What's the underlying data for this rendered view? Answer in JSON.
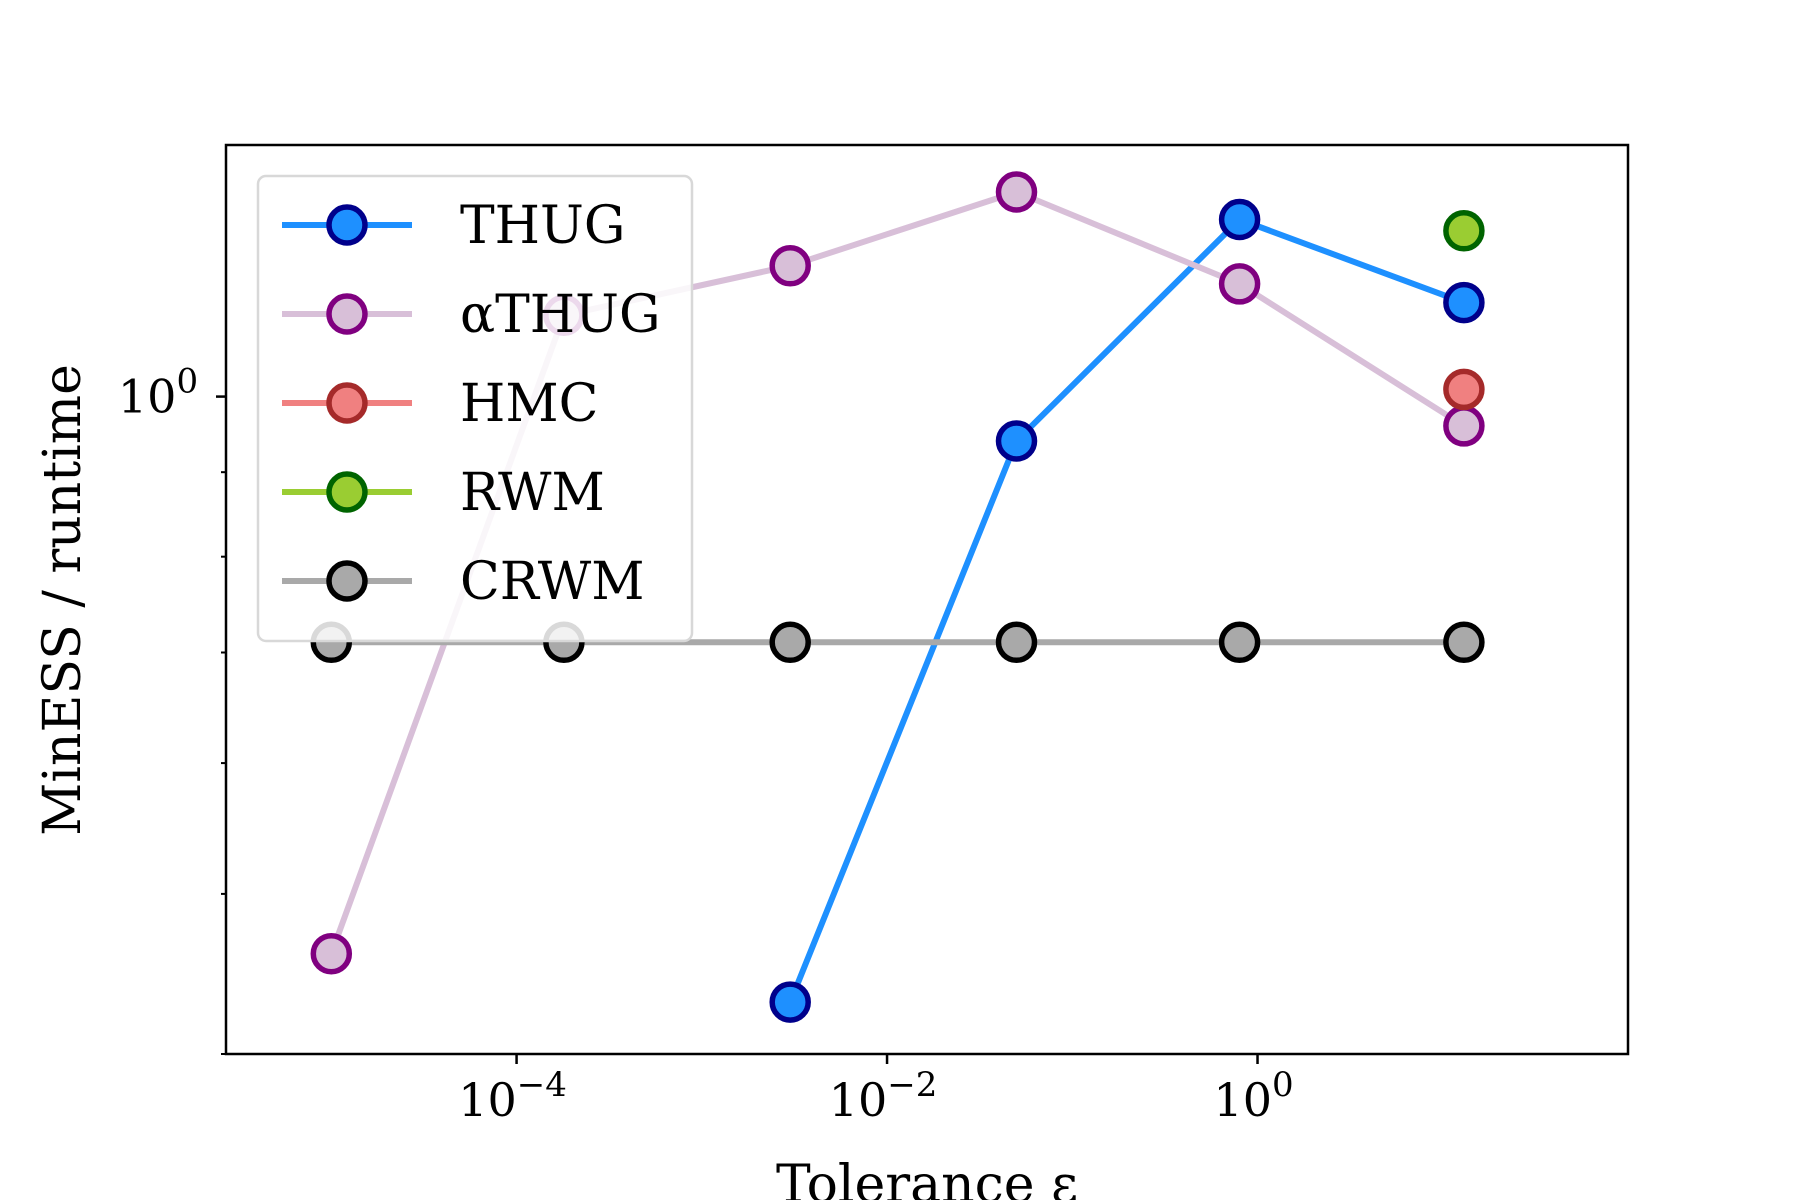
{
  "chart_data": {
    "type": "line",
    "title": "",
    "xlabel": "Tolerance ε",
    "ylabel": "MinESS / runtime",
    "xscale": "log",
    "yscale": "log",
    "xlim": [
      2.7e-06,
      100
    ],
    "ylim": [
      0.4,
      1.42
    ],
    "xticks": [
      {
        "value": 0.0001,
        "base": "10",
        "exp": "−4"
      },
      {
        "value": 0.01,
        "base": "10",
        "exp": "−2"
      },
      {
        "value": 1,
        "base": "10",
        "exp": "0"
      }
    ],
    "yticks": [
      {
        "value": 1,
        "base": "10",
        "exp": "0"
      }
    ],
    "yminor_ticks": [
      0.4,
      0.5,
      0.6,
      0.7,
      0.8,
      0.9
    ],
    "grid": false,
    "legend_position": "upper-left",
    "x": [
      1e-05,
      0.00018,
      0.003,
      0.05,
      0.8,
      13
    ],
    "series": [
      {
        "name": "THUG",
        "key": "thug",
        "line_color": "#1e90ff",
        "marker_fill": "#1e90ff",
        "marker_edge": "#00008b",
        "line_opacity": 1,
        "values": [
          null,
          null,
          0.43,
          0.94,
          1.28,
          1.14
        ]
      },
      {
        "name": "αTHUG",
        "key": "athug",
        "line_color": "#d8bfd8",
        "marker_fill": "#d8bfd8",
        "marker_edge": "#800080",
        "line_opacity": 1,
        "values": [
          0.46,
          1.12,
          1.2,
          1.33,
          1.17,
          0.96
        ]
      },
      {
        "name": "HMC",
        "key": "hmc",
        "line_color": "#f08080",
        "marker_fill": "#f08080",
        "marker_edge": "#a52a2a",
        "line_opacity": 1,
        "values": [
          null,
          null,
          null,
          null,
          null,
          1.01
        ]
      },
      {
        "name": "RWM",
        "key": "rwm",
        "line_color": "#9acd32",
        "marker_fill": "#9acd32",
        "marker_edge": "#006400",
        "line_opacity": 1,
        "values": [
          null,
          null,
          null,
          null,
          null,
          1.26
        ]
      },
      {
        "name": "CRWM",
        "key": "crwm",
        "line_color": "#a9a9a9",
        "marker_fill": "#a9a9a9",
        "marker_edge": "#000000",
        "line_opacity": 1,
        "values": [
          0.71,
          0.71,
          0.71,
          0.71,
          0.71,
          0.71
        ]
      }
    ]
  }
}
